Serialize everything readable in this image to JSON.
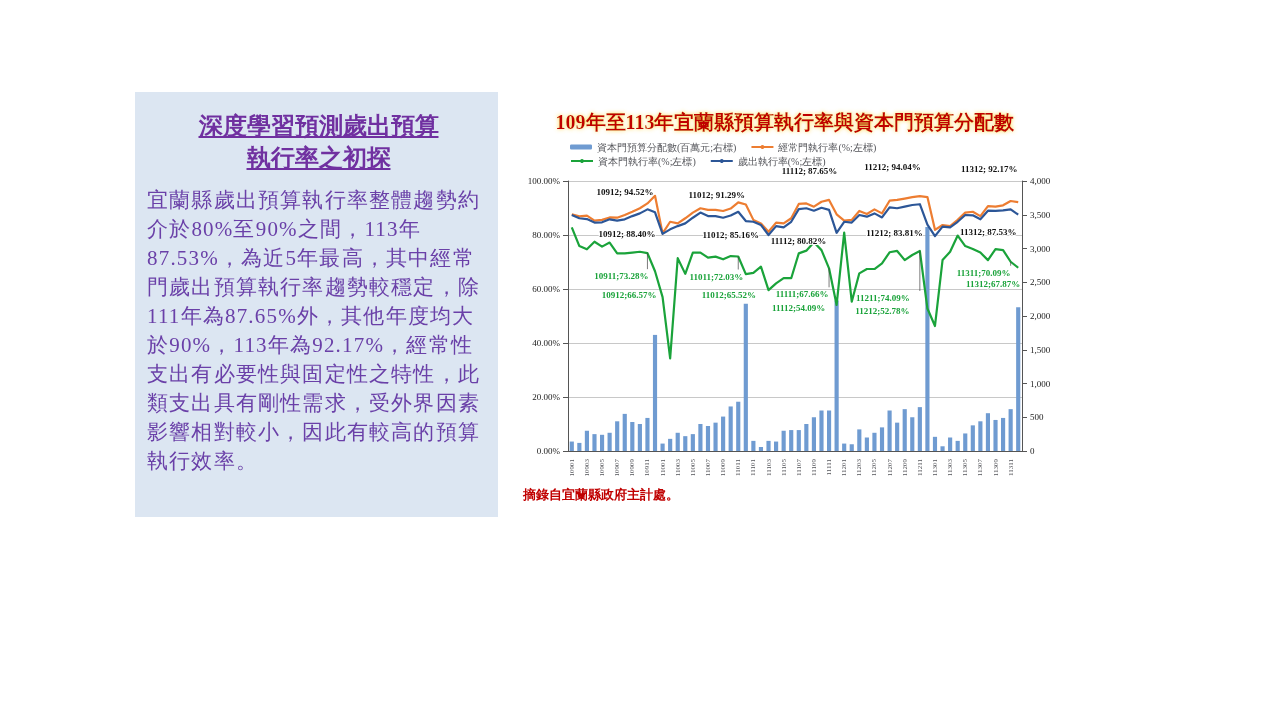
{
  "chart_data": [
    {
      "type": "other",
      "title": "深度學習預測歲出預算執行率之初探",
      "annotations": [
        "宜蘭縣歲出預算執行率整體趨勢約介於80%至90%之間，113年87.53%，為近5年最高，其中經常門歲出預算執行率趨勢較穩定，除111年為87.65%外，其他年度均大於90%，113年為92.17%，經常性支出有必要性與固定性之特性，此類支出具有剛性需求，受外界因素影響相對較小，因此有較高的預算執行效率。"
      ]
    },
    {
      "type": "line",
      "title": "109年至113年宜蘭縣預算執行率與資本門預算分配數",
      "categories": [
        "10901",
        null,
        "10903",
        null,
        "10905",
        null,
        "10907",
        null,
        "10909",
        null,
        "10911",
        null,
        "11001",
        null,
        "11003",
        null,
        "11005",
        null,
        "11007",
        null,
        "11009",
        null,
        "11011",
        null,
        "11101",
        null,
        "11103",
        null,
        "11105",
        null,
        "11107",
        null,
        "11109",
        null,
        "11111",
        null,
        "11201",
        null,
        "11203",
        null,
        "11205",
        null,
        "11207",
        null,
        "11209",
        null,
        "11211",
        null,
        "11301",
        null,
        "11303",
        null,
        "11305",
        null,
        "11307",
        null,
        "11309",
        null,
        "11311",
        null
      ],
      "series": [
        {
          "name": "資本門預算分配數(百萬元;右標)",
          "type": "bar",
          "axis": "y2",
          "color": "#6f9bd1",
          "values": [
            140,
            120,
            300,
            250,
            240,
            270,
            440,
            550,
            430,
            400,
            490,
            1720,
            110,
            180,
            270,
            220,
            250,
            400,
            370,
            420,
            510,
            660,
            730,
            2180,
            150,
            60,
            150,
            140,
            300,
            310,
            310,
            400,
            500,
            600,
            600,
            2230,
            110,
            100,
            320,
            200,
            270,
            350,
            600,
            420,
            620,
            500,
            650,
            3320,
            210,
            70,
            200,
            150,
            260,
            380,
            440,
            560,
            460,
            490,
            620,
            2130
          ]
        },
        {
          "name": "經常門執行率(%;左標)",
          "type": "line",
          "color": "#ed7d31",
          "values": [
            87.7,
            86.9,
            87.2,
            85.3,
            85.6,
            86.5,
            86.4,
            87.4,
            88.6,
            89.9,
            91.7,
            94.52,
            80.6,
            84.9,
            84.3,
            86.2,
            88.3,
            89.9,
            89.3,
            89.3,
            88.9,
            89.8,
            92.1,
            91.29,
            85.6,
            84.3,
            81.2,
            84.6,
            84.3,
            86.2,
            91.5,
            91.7,
            90.5,
            92.3,
            93.0,
            87.65,
            85.3,
            85.6,
            88.9,
            87.8,
            89.5,
            88.0,
            92.7,
            93.0,
            93.5,
            94.0,
            94.4,
            94.04,
            81.9,
            83.7,
            83.3,
            85.6,
            88.3,
            88.6,
            87.0,
            90.7,
            90.5,
            91.0,
            92.6,
            92.17
          ]
        },
        {
          "name": "資本門執行率(%;左標)",
          "type": "line",
          "color": "#1aa33a",
          "values": [
            82.8,
            75.9,
            74.7,
            77.5,
            75.7,
            77.2,
            73.2,
            73.2,
            73.5,
            73.8,
            73.28,
            66.57,
            57,
            34.3,
            71.4,
            65.6,
            73.5,
            73.5,
            71.6,
            72.0,
            71.0,
            72.2,
            72.03,
            65.52,
            66.0,
            68.3,
            59.6,
            62.1,
            64.0,
            64.0,
            73.2,
            74.2,
            77.3,
            74.4,
            67.66,
            54.09,
            80.9,
            55.3,
            65.8,
            67.4,
            67.4,
            69.5,
            73.6,
            74.1,
            70.7,
            72.6,
            74.09,
            52.78,
            46.3,
            70.7,
            73.8,
            79.8,
            75.9,
            74.8,
            73.5,
            70.7,
            74.8,
            74.4,
            70.09,
            67.87
          ]
        },
        {
          "name": "歲出執行率(%;左標)",
          "type": "line",
          "color": "#2c5697",
          "values": [
            87.4,
            86.2,
            85.9,
            84.6,
            84.7,
            85.8,
            85.3,
            85.8,
            87.0,
            88.0,
            89.5,
            88.4,
            80.4,
            82.1,
            83.3,
            84.3,
            86.4,
            88.3,
            87.0,
            87.0,
            86.4,
            87.2,
            88.6,
            85.16,
            84.9,
            83.7,
            80.0,
            83.3,
            82.8,
            84.9,
            89.6,
            89.9,
            89.0,
            90.1,
            89.3,
            80.82,
            84.9,
            84.6,
            87.4,
            86.8,
            88.0,
            86.5,
            90.2,
            89.9,
            90.5,
            91.1,
            91.4,
            83.81,
            79.6,
            83.1,
            82.8,
            84.9,
            87.4,
            87.3,
            85.8,
            89.0,
            88.9,
            89.1,
            89.5,
            87.53
          ]
        }
      ],
      "ylim": [
        0,
        100
      ],
      "yticks": [
        {
          "value": 0,
          "label": "0.00%"
        },
        {
          "value": 20,
          "label": "20.00%"
        },
        {
          "value": 40,
          "label": "40.00%"
        },
        {
          "value": 60,
          "label": "60.00%"
        },
        {
          "value": 80,
          "label": "80.00%"
        },
        {
          "value": 100,
          "label": "100.00%"
        }
      ],
      "y2lim": [
        0,
        4000
      ],
      "y2ticks": [
        0,
        500,
        {
          "value": 1000,
          "label": "1,000"
        },
        {
          "value": 1500,
          "label": "1,500"
        },
        {
          "value": 2000,
          "label": "2,000"
        },
        {
          "value": 2500,
          "label": "2,500"
        },
        {
          "value": 3000,
          "label": "3,000"
        },
        {
          "value": 3500,
          "label": "3,500"
        },
        {
          "value": 4000,
          "label": "4,000"
        }
      ],
      "grid": "y",
      "legend": "top",
      "marker": "none",
      "annotations": [
        "10912; 94.52%",
        "10912; 88.40%",
        "11012; 91.29%",
        "11012; 85.16%",
        "11112; 87.65%",
        "11112; 80.82%",
        "11212; 94.04%",
        "11212; 83.81%",
        "11312; 92.17%",
        "11312; 87.53%",
        {
          "text": "10911;73.28%",
          "x": "10911",
          "y": 73.28
        },
        "10912;66.57%",
        {
          "text": "11011;72.03%",
          "x": "11011",
          "y": 72.03
        },
        "11012;65.52%",
        {
          "text": "11111;67.66%",
          "x": "11111",
          "y": 67.66
        },
        "11112;54.09%",
        {
          "text": "11211;74.09%",
          "x": "11211",
          "y": 74.09
        },
        "11212;52.78%",
        {
          "text": "11311;70.09%",
          "x": "11311",
          "y": 70.09
        },
        "11312;67.87%",
        "摘錄自宜蘭縣政府主計處。"
      ]
    }
  ]
}
